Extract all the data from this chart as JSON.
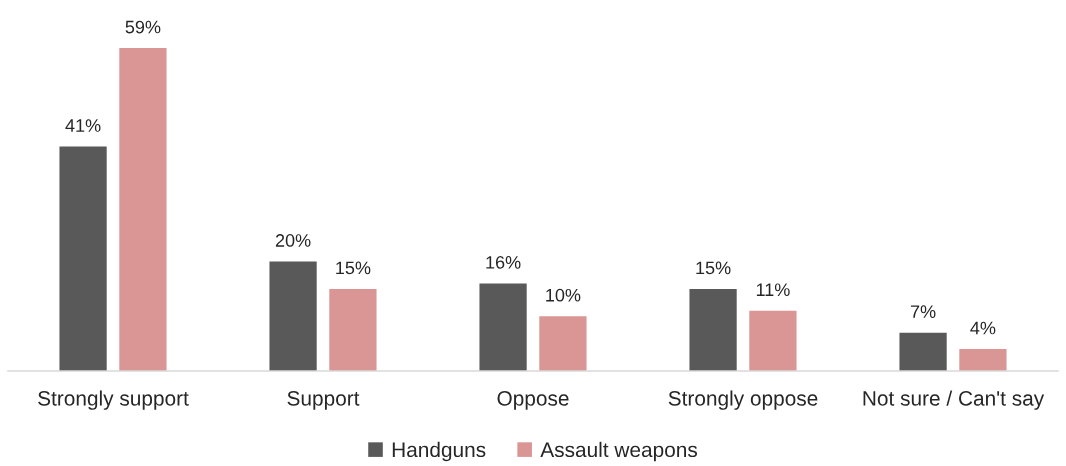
{
  "chart_data": {
    "type": "bar",
    "categories": [
      "Strongly support",
      "Support",
      "Oppose",
      "Strongly oppose",
      "Not sure / Can't say"
    ],
    "series": [
      {
        "name": "Handguns",
        "color": "#595959",
        "values": [
          41,
          20,
          16,
          15,
          7
        ],
        "value_labels": [
          "41%",
          "20%",
          "16%",
          "15%",
          "7%"
        ]
      },
      {
        "name": "Assault weapons",
        "color": "#d99694",
        "values": [
          59,
          15,
          10,
          11,
          4
        ],
        "value_labels": [
          "59%",
          "15%",
          "10%",
          "11%",
          "4%"
        ]
      }
    ],
    "legend": "bottom"
  }
}
